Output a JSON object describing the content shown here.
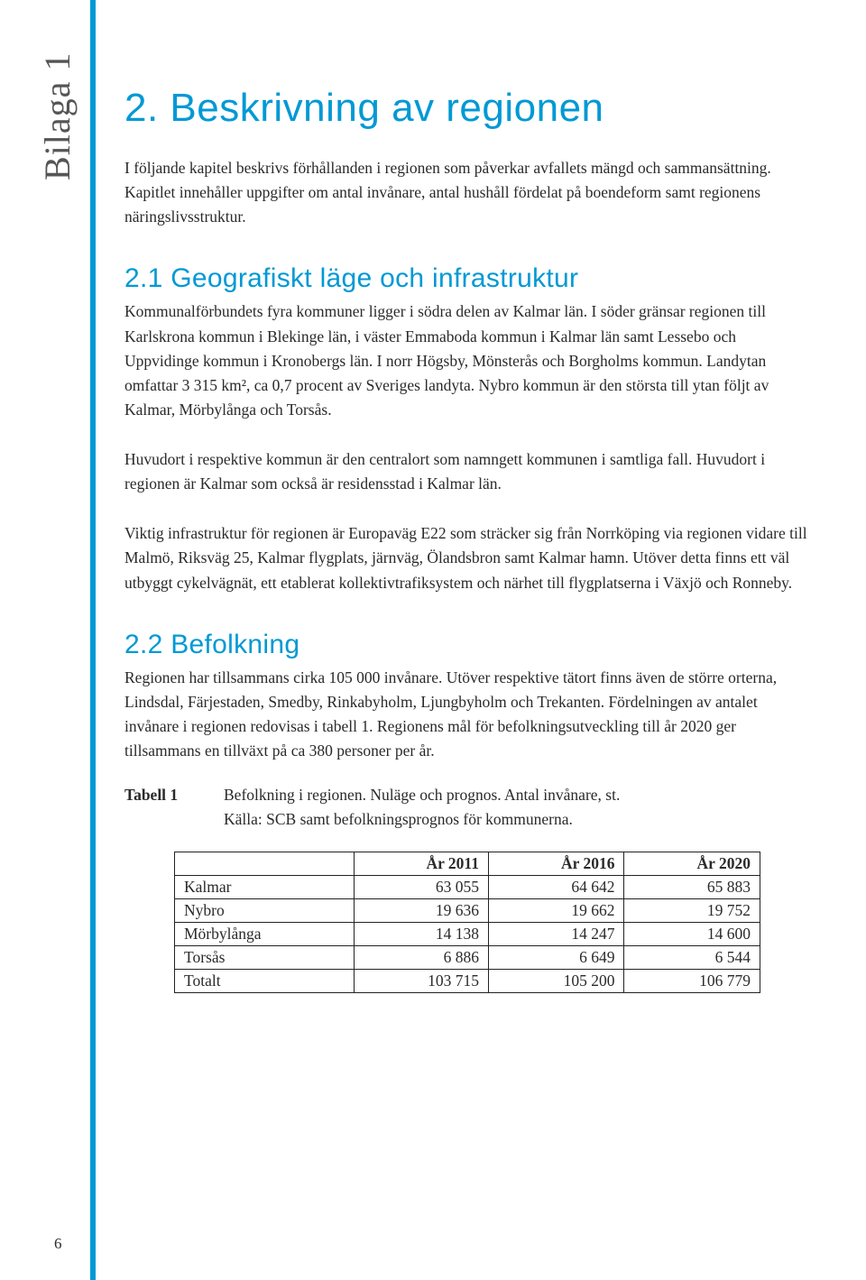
{
  "side_label": "Bilaga 1",
  "page_number": "6",
  "h1": "2. Beskrivning av regionen",
  "intro": "I följande kapitel beskrivs förhållanden i regionen som påverkar avfallets mängd och sammansättning. Kapitlet innehåller uppgifter om antal invånare, antal hushåll fördelat på boendeform samt regionens näringslivsstruktur.",
  "h2_1": "2.1 Geografiskt läge och infrastruktur",
  "p21a": "Kommunalförbundets fyra kommuner ligger i södra delen av Kalmar län. I söder gränsar regionen till Karlskrona kommun i Blekinge län, i väster Emmaboda kommun i Kalmar län samt Lessebo och Uppvidinge kommun i Kronobergs län. I norr Högsby, Mönsterås och Borgholms kommun. Landytan omfattar 3 315 km², ca 0,7 procent av Sveriges landyta. Nybro kommun är den största till ytan följt av Kalmar, Mörbylånga och Torsås.",
  "p21b": "Huvudort i respektive kommun är den centralort som namngett kommunen i samtliga fall. Huvudort i regionen är Kalmar som också är residensstad i Kalmar län.",
  "p21c": "Viktig infrastruktur för regionen är Europaväg E22 som sträcker sig från Norrköping via regionen vidare till Malmö, Riksväg 25, Kalmar flygplats, järnväg, Ölandsbron samt Kalmar hamn. Utöver detta finns ett väl utbyggt cykelvägnät, ett etablerat kollektivtrafiksystem och närhet till flygplatserna i Växjö och Ronneby.",
  "h2_2": "2.2 Befolkning",
  "p22a": "Regionen har tillsammans cirka 105 000 invånare. Utöver respektive tätort finns även de större orterna, Lindsdal, Färjestaden, Smedby, Rinkabyholm, Ljungbyholm och Trekanten. Fördelningen av antalet invånare i regionen redovisas i tabell 1. Regionens mål för befolkningsutveckling till år 2020 ger tillsammans en tillväxt på ca 380 personer per år.",
  "table_label": "Tabell 1",
  "table_caption_l1": "Befolkning i regionen. Nuläge och prognos. Antal invånare, st.",
  "table_caption_l2": "Källa: SCB samt befolkningsprognos för kommunerna.",
  "table": {
    "columns": [
      "",
      "År 2011",
      "År 2016",
      "År 2020"
    ],
    "rows": [
      [
        "Kalmar",
        "63 055",
        "64 642",
        "65 883"
      ],
      [
        "Nybro",
        "19 636",
        "19 662",
        "19 752"
      ],
      [
        "Mörbylånga",
        "14 138",
        "14 247",
        "14 600"
      ],
      [
        "Torsås",
        "6 886",
        "6 649",
        "6 544"
      ],
      [
        "Totalt",
        "103 715",
        "105 200",
        "106 779"
      ]
    ]
  },
  "colors": {
    "accent": "#0099d4",
    "text": "#2a2a2a",
    "border": "#222222",
    "background": "#ffffff"
  }
}
